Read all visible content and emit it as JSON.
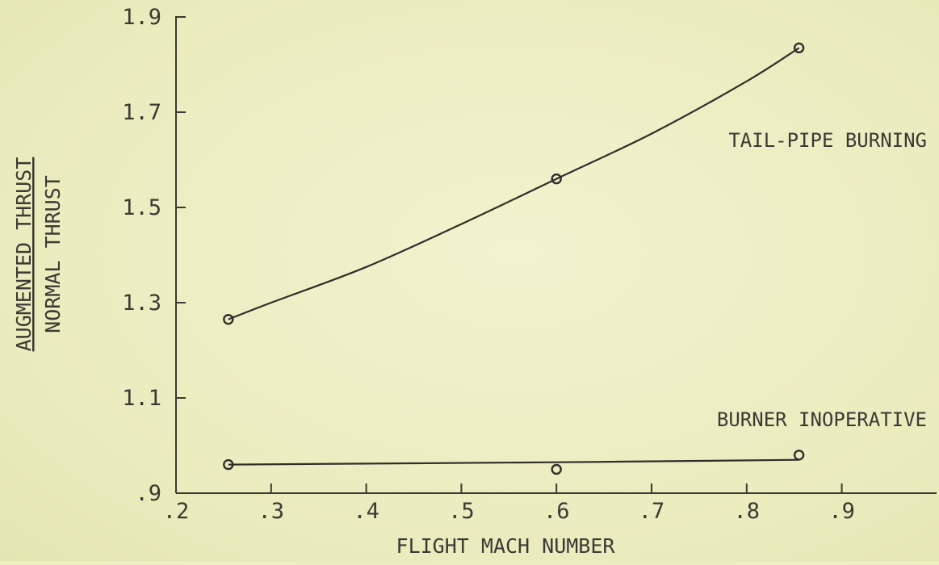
{
  "chart_data": {
    "type": "line",
    "title": "",
    "xlabel": "FLIGHT MACH NUMBER",
    "ylabel_numerator": "AUGMENTED THRUST",
    "ylabel_denominator": "NORMAL THRUST",
    "xlim": [
      0.2,
      1.0
    ],
    "ylim": [
      0.9,
      1.9
    ],
    "x_ticks": [
      0.2,
      0.3,
      0.4,
      0.5,
      0.6,
      0.7,
      0.8,
      0.9
    ],
    "x_tick_labels": [
      ".2",
      ".3",
      ".4",
      ".5",
      ".6",
      ".7",
      ".8",
      ".9"
    ],
    "y_ticks": [
      0.9,
      1.1,
      1.3,
      1.5,
      1.7,
      1.9
    ],
    "y_tick_labels": [
      ".9",
      "1.1",
      "1.3",
      "1.5",
      "1.7",
      "1.9"
    ],
    "grid": false,
    "legend": "none",
    "series": [
      {
        "name": "TAIL-PIPE BURNING",
        "points": [
          {
            "x": 0.255,
            "y": 1.265
          },
          {
            "x": 0.6,
            "y": 1.56
          },
          {
            "x": 0.855,
            "y": 1.835
          }
        ],
        "curve": [
          {
            "x": 0.255,
            "y": 1.265
          },
          {
            "x": 0.3,
            "y": 1.3
          },
          {
            "x": 0.4,
            "y": 1.375
          },
          {
            "x": 0.5,
            "y": 1.465
          },
          {
            "x": 0.6,
            "y": 1.56
          },
          {
            "x": 0.7,
            "y": 1.655
          },
          {
            "x": 0.8,
            "y": 1.765
          },
          {
            "x": 0.855,
            "y": 1.835
          }
        ]
      },
      {
        "name": "BURNER INOPERATIVE",
        "points": [
          {
            "x": 0.255,
            "y": 0.96
          },
          {
            "x": 0.6,
            "y": 0.95
          },
          {
            "x": 0.855,
            "y": 0.98
          }
        ],
        "curve": [
          {
            "x": 0.255,
            "y": 0.96
          },
          {
            "x": 0.6,
            "y": 0.965
          },
          {
            "x": 0.855,
            "y": 0.97
          }
        ]
      }
    ]
  }
}
